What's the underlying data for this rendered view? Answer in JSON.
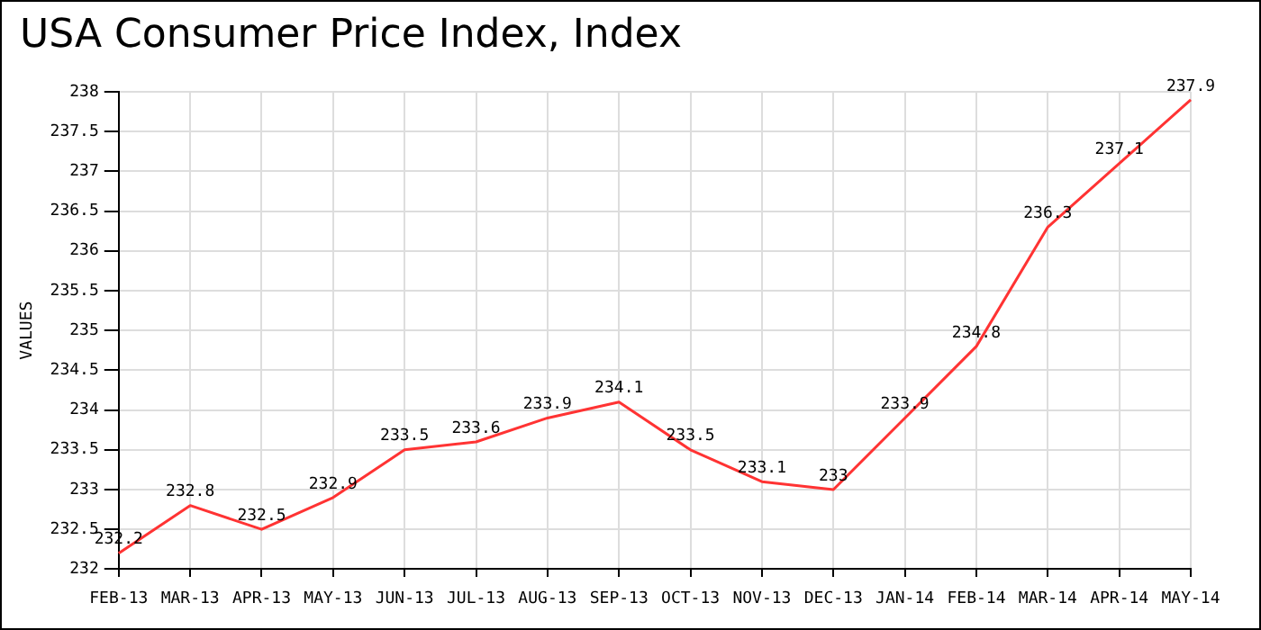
{
  "chart_data": {
    "type": "line",
    "title": "USA Consumer Price Index, Index",
    "ylabel": "VALUES",
    "categories": [
      "FEB-13",
      "MAR-13",
      "APR-13",
      "MAY-13",
      "JUN-13",
      "JUL-13",
      "AUG-13",
      "SEP-13",
      "OCT-13",
      "NOV-13",
      "DEC-13",
      "JAN-14",
      "FEB-14",
      "MAR-14",
      "APR-14",
      "MAY-14"
    ],
    "series": [
      {
        "color": "#ff3333",
        "values": [
          232.2,
          232.8,
          232.5,
          232.9,
          233.5,
          233.6,
          233.9,
          234.1,
          233.5,
          233.1,
          233,
          233.9,
          234.8,
          236.3,
          237.1,
          237.9
        ]
      }
    ],
    "ylim": [
      232,
      238
    ],
    "yticks": [
      232,
      232.5,
      233,
      233.5,
      234,
      234.5,
      235,
      235.5,
      236,
      236.5,
      237,
      237.5,
      238
    ],
    "grid": true,
    "legend": false,
    "marker": "none",
    "line_style": "solid",
    "data_labels": true
  }
}
